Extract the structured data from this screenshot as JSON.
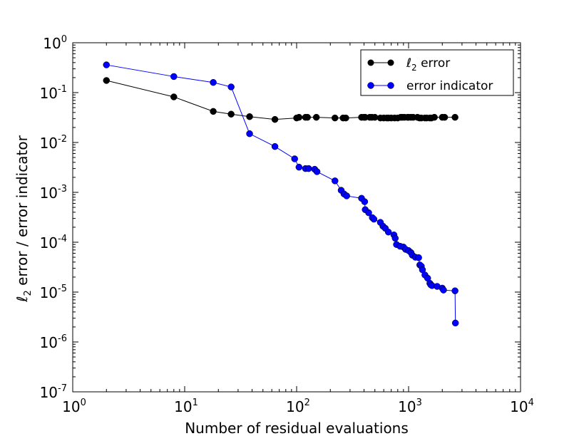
{
  "chart_data": {
    "type": "line",
    "xscale": "log",
    "yscale": "log",
    "xlim": [
      1,
      10000
    ],
    "ylim": [
      1e-07,
      1
    ],
    "xlabel": "Number of residual evaluations",
    "ylabel": {
      "symbol": "ℓ",
      "sub": "2",
      "rest": " error / error indicator"
    },
    "x_ticks": [
      {
        "base": "10",
        "exp": "0"
      },
      {
        "base": "10",
        "exp": "1"
      },
      {
        "base": "10",
        "exp": "2"
      },
      {
        "base": "10",
        "exp": "3"
      },
      {
        "base": "10",
        "exp": "4"
      }
    ],
    "y_ticks": [
      {
        "base": "10",
        "exp": "-7"
      },
      {
        "base": "10",
        "exp": "-6"
      },
      {
        "base": "10",
        "exp": "-5"
      },
      {
        "base": "10",
        "exp": "-4"
      },
      {
        "base": "10",
        "exp": "-3"
      },
      {
        "base": "10",
        "exp": "-2"
      },
      {
        "base": "10",
        "exp": "-1"
      },
      {
        "base": "10",
        "exp": "0"
      }
    ],
    "legend": "top-right",
    "series": [
      {
        "name": "l2-error",
        "legend_symbol": "ℓ",
        "legend_sub": "2",
        "legend_rest": " error",
        "color": "#000000",
        "x": [
          2,
          8,
          18,
          26,
          38,
          64,
          100,
          105,
          120,
          125,
          150,
          220,
          260,
          275,
          380,
          400,
          410,
          450,
          470,
          500,
          560,
          600,
          640,
          660,
          700,
          750,
          800,
          850,
          880,
          920,
          980,
          1000,
          1050,
          1100,
          1200,
          1250,
          1300,
          1400,
          1450,
          1550,
          1600,
          1700,
          2000,
          2100,
          2600
        ],
        "y": [
          0.175,
          0.082,
          0.042,
          0.037,
          0.033,
          0.029,
          0.031,
          0.032,
          0.032,
          0.032,
          0.032,
          0.031,
          0.031,
          0.031,
          0.032,
          0.032,
          0.032,
          0.032,
          0.032,
          0.032,
          0.031,
          0.031,
          0.031,
          0.031,
          0.031,
          0.031,
          0.031,
          0.032,
          0.032,
          0.032,
          0.032,
          0.032,
          0.032,
          0.032,
          0.032,
          0.031,
          0.031,
          0.031,
          0.031,
          0.031,
          0.031,
          0.032,
          0.032,
          0.032,
          0.032
        ]
      },
      {
        "name": "error-indicator",
        "legend_symbol": "",
        "legend_sub": "",
        "legend_rest": "error indicator",
        "color": "#0000ff",
        "x": [
          2,
          8,
          18,
          26,
          38,
          64,
          96,
          105,
          120,
          128,
          145,
          152,
          220,
          250,
          265,
          280,
          380,
          405,
          410,
          440,
          475,
          490,
          560,
          590,
          620,
          660,
          740,
          760,
          780,
          840,
          900,
          940,
          1000,
          1050,
          1080,
          1150,
          1230,
          1260,
          1300,
          1330,
          1400,
          1480,
          1550,
          1580,
          1620,
          1800,
          2000,
          2050,
          2600,
          2620
        ],
        "y": [
          0.36,
          0.21,
          0.16,
          0.13,
          0.015,
          0.0083,
          0.0047,
          0.0032,
          0.003,
          0.003,
          0.0029,
          0.0026,
          0.0017,
          0.0011,
          0.00093,
          0.00085,
          0.00076,
          0.00065,
          0.00045,
          0.00039,
          0.00031,
          0.00029,
          0.00025,
          0.00021,
          0.00019,
          0.00016,
          0.00014,
          0.00012,
          9e-05,
          8.3e-05,
          8e-05,
          7.2e-05,
          6.8e-05,
          6.2e-05,
          5.5e-05,
          5e-05,
          4.9e-05,
          3.5e-05,
          3.3e-05,
          2.8e-05,
          2.2e-05,
          1.9e-05,
          1.5e-05,
          1.4e-05,
          1.35e-05,
          1.3e-05,
          1.2e-05,
          1.1e-05,
          1.06e-05,
          2.4e-06
        ]
      }
    ]
  }
}
